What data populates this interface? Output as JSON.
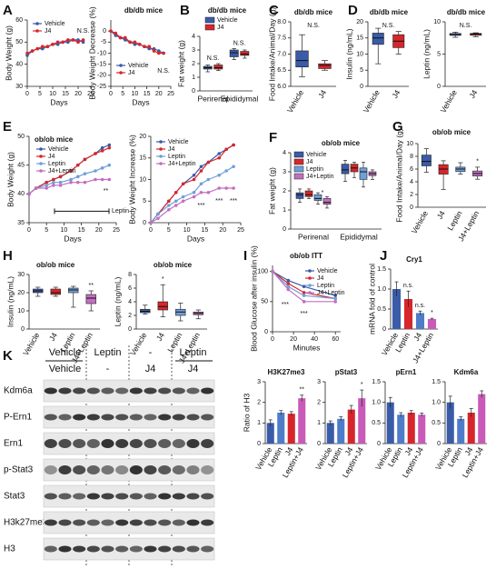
{
  "panel_labels": [
    "A",
    "B",
    "C",
    "D",
    "E",
    "F",
    "G",
    "H",
    "I",
    "J",
    "K"
  ],
  "blot": {
    "group_labels": [
      "Vehicle",
      "Leptin",
      "-",
      "Leptin"
    ],
    "subgroup_labels": [
      "Vehicle",
      "-",
      "J4",
      "J4"
    ],
    "rows": [
      "Kdm6a",
      "P-Ern1",
      "Ern1",
      "p-Stat3",
      "Stat3",
      "H3k27me3",
      "H3"
    ]
  },
  "chart_data": [
    {
      "type": "line",
      "ylabel": "Body Weight (g)",
      "xlabel": "Days",
      "x": [
        0,
        2,
        4,
        6,
        8,
        10,
        12,
        14,
        16,
        18,
        20,
        22
      ],
      "xlim": [
        0,
        25
      ],
      "xticks": [
        0,
        5,
        10,
        15,
        20,
        25
      ],
      "ylim": [
        30,
        60
      ],
      "yticks": [
        30,
        40,
        50,
        60
      ],
      "series": [
        {
          "name": "Vehicle",
          "color": "#3a5ba8",
          "values": [
            44,
            46,
            47,
            47,
            48,
            49,
            49,
            50,
            50,
            51,
            51,
            50
          ]
        },
        {
          "name": "J4",
          "color": "#d6262b",
          "values": [
            45,
            46,
            47,
            48,
            48,
            49,
            50,
            50,
            51,
            51,
            50,
            51
          ]
        }
      ],
      "annotations": [
        {
          "text": "N.S.",
          "x": 22,
          "y": 55
        }
      ]
    },
    {
      "type": "line",
      "title": "db/db mice",
      "ylabel": "Body Weight Decrease (%)",
      "xlabel": "Days",
      "x": [
        0,
        2,
        4,
        6,
        8,
        10,
        12,
        14,
        16,
        18,
        20,
        22
      ],
      "xlim": [
        0,
        25
      ],
      "xticks": [
        0,
        5,
        10,
        15,
        20,
        25
      ],
      "ylim": [
        -25,
        5
      ],
      "yticks": [
        -25,
        -20,
        -15,
        -10,
        -5,
        0
      ],
      "series": [
        {
          "name": "Vehicle",
          "color": "#3a5ba8",
          "values": [
            0,
            -2,
            -3,
            -4,
            -5,
            -6,
            -6,
            -7,
            -8,
            -8,
            -9,
            -10
          ]
        },
        {
          "name": "J4",
          "color": "#d6262b",
          "values": [
            0,
            -1,
            -3,
            -3,
            -5,
            -5,
            -6,
            -7,
            -7,
            -9,
            -10,
            -10
          ]
        }
      ],
      "annotations": [
        {
          "text": "N.S.",
          "x": 22,
          "y": -18
        }
      ]
    },
    {
      "type": "box",
      "title": "db/db mice",
      "ylabel": "Fat weight (g)",
      "categories": [
        "Perirenal",
        "Epididymal"
      ],
      "ylim": [
        0,
        4
      ],
      "yticks": [
        0,
        1,
        2,
        3,
        4
      ],
      "series": [
        {
          "name": "Vehicle",
          "color": "#3a5ba8",
          "values": [
            [
              1.4,
              1.6,
              1.7,
              1.8,
              1.9
            ],
            [
              2.3,
              2.5,
              2.8,
              3.0,
              3.1
            ]
          ]
        },
        {
          "name": "J4",
          "color": "#d6262b",
          "values": [
            [
              1.5,
              1.6,
              1.7,
              1.9,
              2.0
            ],
            [
              2.4,
              2.6,
              2.7,
              2.9,
              3.0
            ]
          ]
        }
      ],
      "annotations": [
        {
          "text": "N.S.",
          "category": 0
        },
        {
          "text": "N.S.",
          "category": 1
        }
      ]
    },
    {
      "type": "box",
      "title": "db/db mice",
      "ylabel": "Food Intake/Animal/Day (g)",
      "categories": [
        "Vehicle",
        "J4"
      ],
      "colors": [
        "#3a5ba8",
        "#d6262b"
      ],
      "ylim": [
        6,
        8
      ],
      "yticks": [
        {
          "value": 6,
          "label": "6.0"
        },
        6.5,
        {
          "value": 7,
          "label": "7.0"
        },
        7.5,
        {
          "value": 8,
          "label": "8.0"
        }
      ],
      "values": [
        [
          6.3,
          6.6,
          6.8,
          7.1,
          7.6
        ],
        [
          6.5,
          6.55,
          6.65,
          6.7,
          6.8
        ]
      ],
      "annotations": [
        {
          "text": "N.S."
        }
      ]
    },
    {
      "type": "box",
      "title": "db/db mice",
      "ylabel": "Insulin (ng/mL)",
      "categories": [
        "Vehicle",
        "J4"
      ],
      "colors": [
        "#3a5ba8",
        "#d6262b"
      ],
      "ylim": [
        0,
        20
      ],
      "yticks": [
        0,
        5,
        10,
        15,
        20
      ],
      "values": [
        [
          7,
          13,
          15,
          16.5,
          18
        ],
        [
          10,
          12,
          14,
          16,
          17
        ]
      ],
      "annotations": [
        {
          "text": "N.S."
        }
      ]
    },
    {
      "type": "box",
      "title": "db/db mice",
      "ylabel": "Leptin (ng/mL)",
      "categories": [
        "Vehicle",
        "J4"
      ],
      "colors": [
        "#3a5ba8",
        "#d6262b"
      ],
      "ylim": [
        0,
        10
      ],
      "yticks": [
        0,
        5,
        10
      ],
      "values": [
        [
          7.6,
          7.9,
          8.0,
          8.2,
          8.4
        ],
        [
          7.7,
          7.9,
          8.1,
          8.2,
          8.3
        ]
      ],
      "annotations": [
        {
          "text": "N.S."
        }
      ]
    },
    {
      "type": "line",
      "title": "ob/ob mice",
      "ylabel": "Body Weight (g)",
      "xlabel": "Days",
      "x": [
        0,
        2,
        5,
        7,
        9,
        12,
        14,
        16,
        19,
        21,
        23
      ],
      "xlim": [
        0,
        25
      ],
      "xticks": [
        0,
        5,
        10,
        15,
        20,
        25
      ],
      "ylim": [
        35,
        50
      ],
      "yticks": [
        35,
        40,
        45,
        50
      ],
      "series": [
        {
          "name": "Vehicle",
          "color": "#3a5ba8",
          "values": [
            40,
            41,
            42,
            42.5,
            43,
            44,
            45,
            46,
            47,
            48,
            48.5
          ]
        },
        {
          "name": "J4",
          "color": "#d6262b",
          "values": [
            40,
            41,
            42,
            42.5,
            43,
            44,
            45,
            46,
            47,
            47.5,
            48
          ]
        },
        {
          "name": "Leptin",
          "color": "#6f9fd8",
          "values": [
            40,
            41,
            41.5,
            42,
            42,
            42.5,
            43,
            43.5,
            44,
            44.5,
            45
          ]
        },
        {
          "name": "J4+Leptin",
          "color": "#c26fc0",
          "values": [
            40,
            41,
            41,
            41.5,
            41.5,
            42,
            42,
            42,
            42.5,
            42.5,
            42.5
          ]
        }
      ],
      "annotations": [
        {
          "text": "**",
          "x": 22,
          "y": 40.5
        },
        {
          "text": "Leptin",
          "x": 24,
          "y": 37
        }
      ]
    },
    {
      "type": "line",
      "ylabel": "Body Weight Increase (%)",
      "xlabel": "Days",
      "x": [
        0,
        2,
        5,
        7,
        9,
        12,
        14,
        16,
        19,
        21,
        23
      ],
      "xlim": [
        0,
        25
      ],
      "xticks": [
        0,
        5,
        10,
        15,
        20,
        25
      ],
      "ylim": [
        0,
        20
      ],
      "yticks": [
        0,
        5,
        10,
        15,
        20
      ],
      "series": [
        {
          "name": "Vehicle",
          "color": "#3a5ba8",
          "values": [
            0,
            2,
            5,
            7,
            9,
            11,
            13,
            14,
            16,
            17,
            18
          ]
        },
        {
          "name": "J4",
          "color": "#d6262b",
          "values": [
            0,
            2,
            5,
            7,
            9,
            10,
            12,
            14,
            15,
            17,
            18
          ]
        },
        {
          "name": "Leptin",
          "color": "#6f9fd8",
          "values": [
            0,
            2,
            4,
            5,
            6,
            7,
            9,
            10,
            11,
            12,
            13
          ]
        },
        {
          "name": "J4+Leptin",
          "color": "#c26fc0",
          "values": [
            0,
            1,
            3,
            4,
            5,
            6,
            7,
            7,
            8,
            8,
            8
          ]
        }
      ],
      "annotations": [
        {
          "text": "***",
          "x": 14,
          "y": 4
        },
        {
          "text": "***",
          "x": 19,
          "y": 5
        },
        {
          "text": "***",
          "x": 23,
          "y": 5
        }
      ]
    },
    {
      "type": "box",
      "title": "ob/ob mice",
      "ylabel": "Fat weight (g)",
      "categories": [
        "Perirenal",
        "Epididymal"
      ],
      "ylim": [
        0,
        4
      ],
      "yticks": [
        0,
        1,
        2,
        3,
        4
      ],
      "series": [
        {
          "name": "Vehicle",
          "color": "#3a5ba8",
          "values": [
            [
              1.4,
              1.6,
              1.8,
              1.9,
              2.1
            ],
            [
              2.5,
              2.9,
              3.1,
              3.4,
              3.6
            ]
          ]
        },
        {
          "name": "J4",
          "color": "#d6262b",
          "values": [
            [
              1.6,
              1.7,
              1.8,
              2.0,
              2.1
            ],
            [
              2.7,
              3.0,
              3.2,
              3.4,
              3.5
            ]
          ]
        },
        {
          "name": "Leptin",
          "color": "#6f9fd8",
          "values": [
            [
              1.3,
              1.5,
              1.6,
              1.8,
              1.9
            ],
            [
              2.2,
              2.6,
              3.0,
              3.2,
              3.5
            ]
          ]
        },
        {
          "name": "J4+Leptin",
          "color": "#c26fc0",
          "values": [
            [
              1.1,
              1.3,
              1.4,
              1.6,
              1.7
            ],
            [
              2.6,
              2.8,
              2.9,
              3.0,
              3.1
            ]
          ]
        }
      ],
      "annotations": [
        {
          "text": "*",
          "x": 0.2,
          "y": 1.9
        }
      ]
    },
    {
      "type": "box",
      "title": "ob/ob mice",
      "ylabel": "Food Intake/Animal/Day (g)",
      "categories": [
        "Vehicle",
        "J4",
        "Leptin",
        "J4+Leptin"
      ],
      "colors": [
        "#3a5ba8",
        "#d6262b",
        "#6f9fd8",
        "#c26fc0"
      ],
      "ylim": [
        0,
        10
      ],
      "yticks": [
        0,
        2,
        4,
        6,
        8,
        10
      ],
      "values": [
        [
          5.5,
          6.5,
          7.2,
          8.2,
          9.2
        ],
        [
          2.8,
          5.2,
          6.0,
          6.7,
          7.3
        ],
        [
          5.2,
          5.6,
          6.0,
          6.3,
          7.0
        ],
        [
          4.4,
          4.9,
          5.3,
          5.7,
          6.3
        ]
      ],
      "annotations": [
        {
          "text": "*",
          "category": 3
        }
      ]
    },
    {
      "type": "box",
      "title": "ob/ob mice",
      "ylabel": "Insulin (ng/mL)",
      "categories": [
        "Vehicle",
        "J4",
        "Leptin",
        "J4+Leptin"
      ],
      "colors": [
        "#3a5ba8",
        "#d6262b",
        "#6f9fd8",
        "#c26fc0"
      ],
      "ylim": [
        0,
        30
      ],
      "yticks": [
        0,
        10,
        20,
        30
      ],
      "values": [
        [
          18,
          20,
          21,
          22,
          23
        ],
        [
          18,
          19,
          20,
          22,
          23
        ],
        [
          12,
          20,
          21.5,
          22.5,
          23.5
        ],
        [
          10,
          14,
          17,
          19,
          21
        ]
      ],
      "annotations": [
        {
          "text": "**",
          "category": 3
        }
      ]
    },
    {
      "type": "box",
      "title": "ob/ob mice",
      "ylabel": "Leptin (ng/mL)",
      "categories": [
        "Vehicle",
        "J4",
        "Leptin",
        "J4+Leptin"
      ],
      "colors": [
        "#3a5ba8",
        "#d6262b",
        "#6f9fd8",
        "#c26fc0"
      ],
      "ylim": [
        0,
        8
      ],
      "yticks": [
        0,
        2,
        4,
        6,
        8
      ],
      "values": [
        [
          2.2,
          2.4,
          2.6,
          2.9,
          3.5
        ],
        [
          1.8,
          2.8,
          3.3,
          4.0,
          6.5
        ],
        [
          1.2,
          2.0,
          2.5,
          2.9,
          3.8
        ],
        [
          1.5,
          2.1,
          2.3,
          2.5,
          2.8
        ]
      ],
      "annotations": [
        {
          "text": "*",
          "category": 1
        }
      ]
    },
    {
      "type": "line",
      "title": "ob/ob ITT",
      "ylabel": "Blood Glucose after insulin (%)",
      "xlabel": "Minutes",
      "x": [
        0,
        15,
        30,
        60
      ],
      "xlim": [
        0,
        65
      ],
      "xticks": [
        0,
        20,
        40,
        60
      ],
      "ylim": [
        0,
        110
      ],
      "yticks": [
        0,
        50,
        100
      ],
      "series": [
        {
          "name": "Vehicle",
          "color": "#3a5ba8",
          "values": [
            100,
            85,
            75,
            60
          ]
        },
        {
          "name": "J4",
          "color": "#d6262b",
          "values": [
            100,
            80,
            65,
            55
          ]
        },
        {
          "name": "Leptin",
          "color": "#6f9fd8",
          "values": [
            100,
            75,
            60,
            55
          ]
        },
        {
          "name": "J4+Leptin",
          "color": "#c26fc0",
          "values": [
            100,
            70,
            50,
            50
          ]
        }
      ],
      "annotations": [
        {
          "text": "***",
          "x": 12,
          "y": 45
        },
        {
          "text": "***",
          "x": 30,
          "y": 30
        }
      ]
    },
    {
      "type": "bar",
      "title": "Cry1",
      "ylabel": "mRNA fold of control",
      "categories": [
        "Vehicle",
        "Leptin",
        "J4",
        "J4+Leptin"
      ],
      "colors": [
        "#3a5ba8",
        "#d6262b",
        "#4e7cc9",
        "#c85ab8"
      ],
      "ylim": [
        0,
        1.5
      ],
      "yticks": [
        0,
        0.5,
        {
          "value": 1,
          "label": "1.0"
        },
        1.5
      ],
      "values": [
        1.0,
        0.75,
        0.4,
        0.25
      ],
      "errors": [
        0.18,
        0.2,
        0.05,
        0.02
      ],
      "annotations": [
        {
          "text": "n.s.",
          "category": 1
        },
        {
          "text": "n.s.",
          "category": 2
        },
        {
          "text": "*",
          "category": 3
        }
      ]
    },
    {
      "type": "bar",
      "title": "H3K27me3",
      "ylabel": "Ratio of H3",
      "categories": [
        "Vehicle",
        "Leptin",
        "J4",
        "Leptin+J4"
      ],
      "colors": [
        "#3a5ba8",
        "#4e7cc9",
        "#d6262b",
        "#c85ab8"
      ],
      "ylim": [
        0,
        3
      ],
      "yticks": [
        0,
        1,
        2,
        3
      ],
      "values": [
        1.0,
        1.5,
        1.45,
        2.2
      ],
      "errors": [
        0.15,
        0.1,
        0.1,
        0.15
      ],
      "annotations": [
        {
          "text": "**",
          "category": 3
        }
      ]
    },
    {
      "type": "bar",
      "title": "pStat3",
      "categories": [
        "Vehicle",
        "Leptin",
        "J4",
        "Leptin+J4"
      ],
      "colors": [
        "#3a5ba8",
        "#4e7cc9",
        "#d6262b",
        "#c85ab8"
      ],
      "ylim": [
        0,
        3
      ],
      "yticks": [
        0,
        1,
        2,
        3
      ],
      "values": [
        1.0,
        1.2,
        1.65,
        2.2
      ],
      "errors": [
        0.1,
        0.1,
        0.2,
        0.4
      ],
      "annotations": [
        {
          "text": "*",
          "category": 3
        }
      ]
    },
    {
      "type": "bar",
      "title": "pErn1",
      "categories": [
        "Vehicle",
        "Leptin",
        "J4",
        "Leptin+J4"
      ],
      "colors": [
        "#3a5ba8",
        "#4e7cc9",
        "#d6262b",
        "#c85ab8"
      ],
      "ylim": [
        0,
        1.5
      ],
      "yticks": [
        0,
        0.5,
        {
          "value": 1,
          "label": "1.0"
        },
        1.5
      ],
      "values": [
        1.0,
        0.7,
        0.75,
        0.7
      ],
      "errors": [
        0.12,
        0.05,
        0.05,
        0.04
      ]
    },
    {
      "type": "bar",
      "title": "Kdm6a",
      "categories": [
        "Vehicle",
        "Leptin",
        "J4",
        "Leptin+J4"
      ],
      "colors": [
        "#3a5ba8",
        "#4e7cc9",
        "#d6262b",
        "#c85ab8"
      ],
      "ylim": [
        0,
        1.5
      ],
      "yticks": [
        0,
        0.5,
        {
          "value": 1,
          "label": "1.0"
        },
        1.5
      ],
      "values": [
        1.0,
        0.6,
        0.75,
        1.2
      ],
      "errors": [
        0.15,
        0.05,
        0.1,
        0.08
      ]
    }
  ]
}
